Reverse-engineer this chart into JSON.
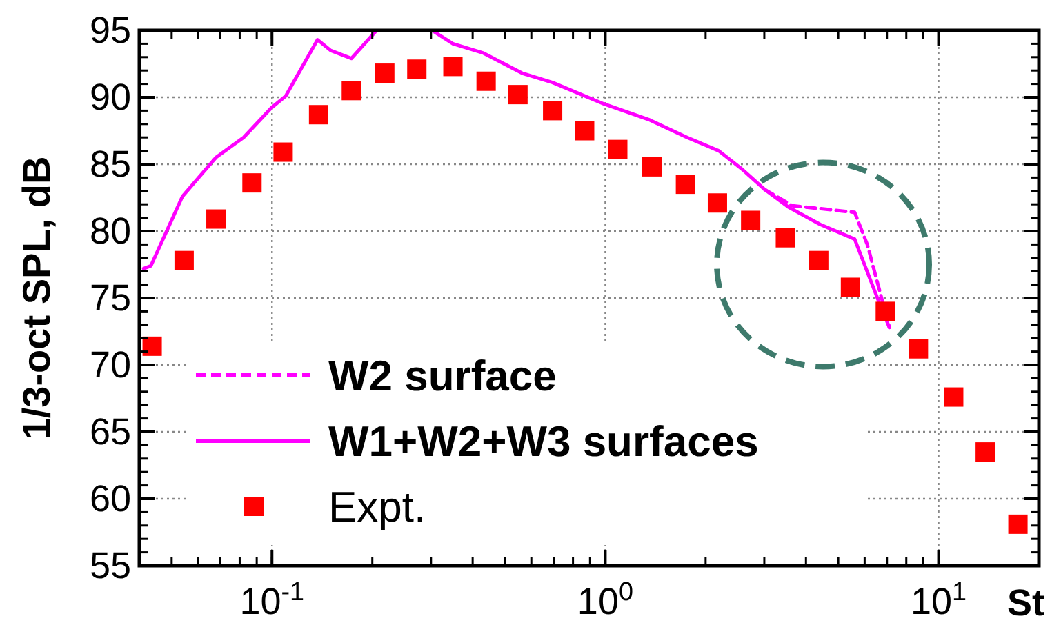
{
  "chart_data": {
    "type": "scatter",
    "xlabel": "St",
    "ylabel": "1/3-oct SPL, dB",
    "log": "x",
    "grid": true,
    "legend": "bottom left",
    "xlim": [
      0.04,
      20
    ],
    "xticks": [
      {
        "value": 0.1,
        "label": "10$^{-1}$"
      },
      {
        "value": 1,
        "label": "10$^{0}$"
      },
      {
        "value": 10,
        "label": "10$^{1}$"
      }
    ],
    "ylim": [
      55,
      95
    ],
    "yticks": [
      55,
      60,
      65,
      70,
      75,
      80,
      85,
      90,
      95
    ],
    "series": [
      {
        "name": "W2 surface",
        "type": "line",
        "line_style": "dashed",
        "color": "#ff00ff",
        "x": [
          3.01,
          3.64,
          5.6,
          6.11,
          7.12
        ],
        "values": [
          83.1,
          81.9,
          81.4,
          79.0,
          72.8
        ]
      },
      {
        "name": "W1+W2+W3 surfaces",
        "type": "line",
        "line_style": "solid",
        "color": "#ff00ff",
        "x": [
          0.0412,
          0.0433,
          0.0539,
          0.0679,
          0.0822,
          0.0995,
          0.11,
          0.137,
          0.15,
          0.173,
          0.206,
          0.25,
          0.302,
          0.349,
          0.431,
          0.563,
          0.695,
          0.991,
          1.36,
          1.76,
          2.19,
          2.58,
          3.01,
          3.54,
          4.41,
          5.6,
          6.6,
          7.12
        ],
        "values": [
          77.2,
          77.4,
          82.6,
          85.5,
          87.0,
          89.2,
          90.1,
          94.3,
          93.5,
          92.9,
          95,
          null,
          95,
          94.0,
          93.3,
          91.8,
          91.1,
          89.5,
          88.3,
          87.0,
          86.0,
          84.6,
          83.1,
          81.8,
          80.5,
          79.4,
          74.8,
          72.8
        ]
      },
      {
        "name": "Expt.",
        "type": "scatter",
        "marker": "square",
        "color": "#ff0000",
        "x": [
          0.0437,
          0.0545,
          0.0679,
          0.0871,
          0.108,
          0.138,
          0.173,
          0.218,
          0.272,
          0.349,
          0.439,
          0.547,
          0.695,
          0.867,
          1.09,
          1.38,
          1.74,
          2.17,
          2.73,
          3.47,
          4.37,
          5.44,
          6.92,
          8.7,
          11.1,
          13.8,
          17.3
        ],
        "values": [
          71.4,
          77.8,
          80.9,
          83.6,
          85.9,
          88.7,
          90.5,
          91.8,
          92.1,
          92.3,
          91.2,
          90.2,
          89.0,
          87.5,
          86.1,
          84.8,
          83.5,
          82.1,
          80.8,
          79.5,
          77.8,
          75.8,
          74.0,
          71.2,
          67.6,
          63.5,
          58.1
        ]
      }
    ]
  }
}
